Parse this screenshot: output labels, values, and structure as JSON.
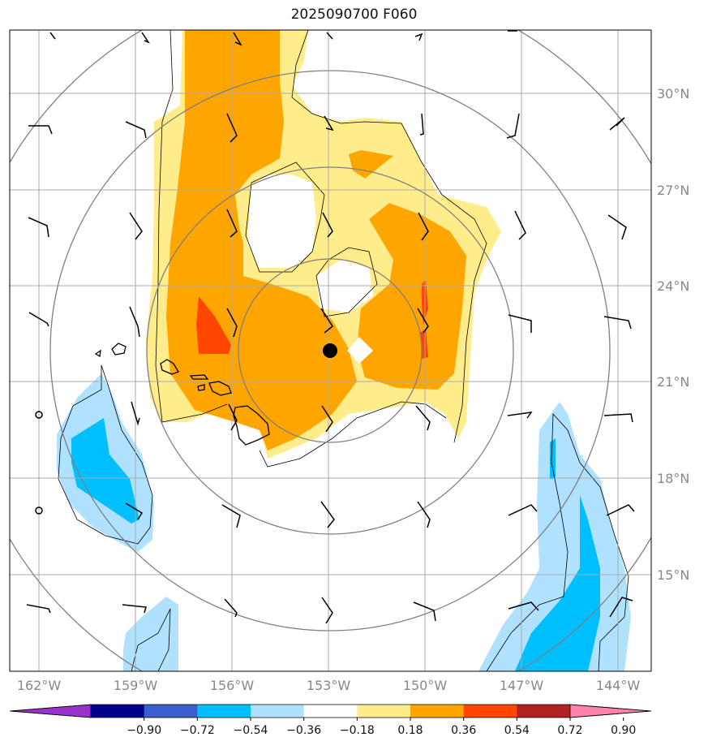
{
  "title": "2025090700 F060",
  "colors": {
    "frame": "#000000",
    "grid": "#aaaaaa",
    "rings": "#808080",
    "center_marker": "#000000"
  },
  "grid": {
    "lat_labels": [
      "30°N",
      "27°N",
      "24°N",
      "21°N",
      "18°N",
      "15°N"
    ],
    "lon_labels": [
      "162°W",
      "159°W",
      "156°W",
      "153°W",
      "150°W",
      "147°W",
      "144°W"
    ]
  },
  "colorbar": {
    "colors": [
      "#9932cc",
      "#00008b",
      "#3a5fcd",
      "#00bfff",
      "#b0e2ff",
      "#ffffff",
      "#ffec8b",
      "#ffa500",
      "#ff4500",
      "#b22222",
      "#ff82ab"
    ],
    "tick_labels": [
      "−0.90",
      "−0.72",
      "−0.54",
      "−0.36",
      "−0.18",
      "0.18",
      "0.36",
      "0.54",
      "0.72",
      "0.90"
    ]
  }
}
